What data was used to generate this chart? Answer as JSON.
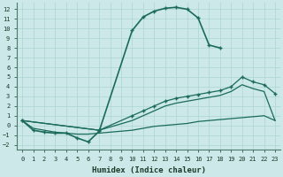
{
  "xlabel": "Humidex (Indice chaleur)",
  "bg_color": "#cce8e8",
  "grid_color": "#b0d8d8",
  "line_color": "#1a6b5a",
  "xlim": [
    -0.5,
    23.5
  ],
  "ylim": [
    -2.5,
    12.7
  ],
  "xticks": [
    0,
    1,
    2,
    3,
    4,
    5,
    6,
    7,
    8,
    9,
    10,
    11,
    12,
    13,
    14,
    15,
    16,
    17,
    18,
    19,
    20,
    21,
    22,
    23
  ],
  "yticks": [
    -2,
    -1,
    0,
    1,
    2,
    3,
    4,
    5,
    6,
    7,
    8,
    9,
    10,
    11,
    12
  ],
  "curve_main_x": [
    0,
    1,
    2,
    3,
    4,
    5,
    6,
    7,
    10,
    11,
    12,
    13,
    14,
    15,
    16,
    17,
    18
  ],
  "curve_main_y": [
    0.5,
    -0.5,
    -0.7,
    -0.8,
    -0.8,
    -1.3,
    -1.7,
    -0.6,
    9.8,
    11.2,
    11.8,
    12.1,
    12.2,
    12.0,
    11.1,
    8.3,
    8.0
  ],
  "curve_upper_x": [
    0,
    7,
    10,
    11,
    12,
    13,
    14,
    15,
    16,
    17,
    18,
    19,
    20,
    21,
    22,
    23
  ],
  "curve_upper_y": [
    0.5,
    -0.5,
    1.0,
    1.5,
    2.0,
    2.5,
    2.8,
    3.0,
    3.2,
    3.4,
    3.6,
    4.0,
    5.0,
    4.5,
    4.2,
    3.3
  ],
  "curve_lower_x": [
    0,
    7,
    10,
    11,
    12,
    13,
    14,
    15,
    16,
    17,
    18,
    19,
    20,
    21,
    22,
    23
  ],
  "curve_lower_y": [
    0.5,
    -0.5,
    0.5,
    1.0,
    1.5,
    2.0,
    2.3,
    2.5,
    2.7,
    2.9,
    3.1,
    3.5,
    4.2,
    3.8,
    3.5,
    0.5
  ],
  "curve_flat_x": [
    0,
    1,
    2,
    3,
    4,
    5,
    6,
    7,
    8,
    9,
    10,
    11,
    12,
    13,
    14,
    15,
    16,
    17,
    18,
    19,
    20,
    21,
    22,
    23
  ],
  "curve_flat_y": [
    0.5,
    -0.3,
    -0.5,
    -0.7,
    -0.8,
    -0.9,
    -0.9,
    -0.8,
    -0.7,
    -0.6,
    -0.5,
    -0.3,
    -0.1,
    0.0,
    0.1,
    0.2,
    0.4,
    0.5,
    0.6,
    0.7,
    0.8,
    0.9,
    1.0,
    0.5
  ]
}
